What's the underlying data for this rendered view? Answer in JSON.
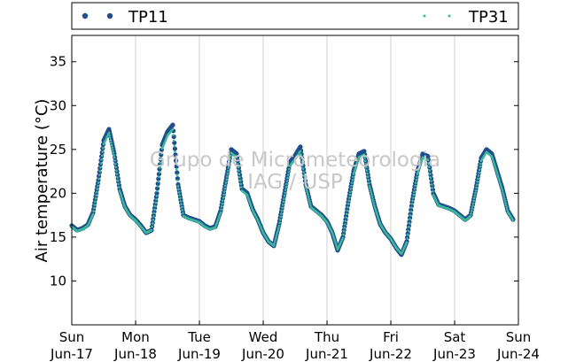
{
  "chart_data": {
    "type": "scatter",
    "title": "",
    "xlabel": "",
    "ylabel": "Air temperature (°C)",
    "ylim": [
      5,
      38
    ],
    "yticks": [
      10,
      15,
      20,
      25,
      30,
      35
    ],
    "xlim": [
      "2012-06-17T00:00",
      "2012-06-24T00:00"
    ],
    "x_ticks": [
      {
        "day": "Sun",
        "date": "Jun-17",
        "x": "2012-06-17T00:00"
      },
      {
        "day": "Mon",
        "date": "Jun-18",
        "x": "2012-06-18T00:00"
      },
      {
        "day": "Tue",
        "date": "Jun-19",
        "x": "2012-06-19T00:00"
      },
      {
        "day": "Wed",
        "date": "Jun-20",
        "x": "2012-06-20T00:00"
      },
      {
        "day": "Thu",
        "date": "Jun-21",
        "x": "2012-06-21T00:00"
      },
      {
        "day": "Fri",
        "date": "Jun-22",
        "x": "2012-06-22T00:00"
      },
      {
        "day": "Sat",
        "date": "Jun-23",
        "x": "2012-06-23T00:00"
      },
      {
        "day": "Sun",
        "date": "Jun-24",
        "x": "2012-06-24T00:00"
      }
    ],
    "grid": "vertical",
    "legend_position": "top",
    "watermark": [
      "Grupo de Micrometeorologia",
      "IAG / USP"
    ],
    "series": [
      {
        "name": "TP11",
        "color": "#1f4e8c",
        "marker": "circle",
        "points": [
          [
            "2012-06-17T00:00",
            16.3
          ],
          [
            "2012-06-17T02:00",
            15.8
          ],
          [
            "2012-06-17T04:00",
            16.0
          ],
          [
            "2012-06-17T06:00",
            16.4
          ],
          [
            "2012-06-17T08:00",
            17.8
          ],
          [
            "2012-06-17T10:00",
            21.5
          ],
          [
            "2012-06-17T12:00",
            26.0
          ],
          [
            "2012-06-17T14:00",
            27.3
          ],
          [
            "2012-06-17T16:00",
            24.5
          ],
          [
            "2012-06-17T18:00",
            20.5
          ],
          [
            "2012-06-17T20:00",
            18.5
          ],
          [
            "2012-06-17T22:00",
            17.5
          ],
          [
            "2012-06-18T00:00",
            17.0
          ],
          [
            "2012-06-18T02:00",
            16.3
          ],
          [
            "2012-06-18T04:00",
            15.5
          ],
          [
            "2012-06-18T06:00",
            15.8
          ],
          [
            "2012-06-18T08:00",
            20.0
          ],
          [
            "2012-06-18T10:00",
            25.5
          ],
          [
            "2012-06-18T12:00",
            27.0
          ],
          [
            "2012-06-18T14:00",
            27.8
          ],
          [
            "2012-06-18T16:00",
            21.0
          ],
          [
            "2012-06-18T18:00",
            17.5
          ],
          [
            "2012-06-18T20:00",
            17.2
          ],
          [
            "2012-06-18T22:00",
            17.0
          ],
          [
            "2012-06-19T00:00",
            16.8
          ],
          [
            "2012-06-19T02:00",
            16.3
          ],
          [
            "2012-06-19T04:00",
            16.0
          ],
          [
            "2012-06-19T06:00",
            16.2
          ],
          [
            "2012-06-19T08:00",
            18.0
          ],
          [
            "2012-06-19T10:00",
            21.5
          ],
          [
            "2012-06-19T12:00",
            25.0
          ],
          [
            "2012-06-19T14:00",
            24.5
          ],
          [
            "2012-06-19T16:00",
            20.5
          ],
          [
            "2012-06-19T18:00",
            20.0
          ],
          [
            "2012-06-19T20:00",
            18.2
          ],
          [
            "2012-06-19T22:00",
            17.0
          ],
          [
            "2012-06-20T00:00",
            15.5
          ],
          [
            "2012-06-20T02:00",
            14.5
          ],
          [
            "2012-06-20T04:00",
            14.0
          ],
          [
            "2012-06-20T06:00",
            16.5
          ],
          [
            "2012-06-20T08:00",
            20.0
          ],
          [
            "2012-06-20T10:00",
            23.5
          ],
          [
            "2012-06-20T12:00",
            24.3
          ],
          [
            "2012-06-20T14:00",
            25.3
          ],
          [
            "2012-06-20T16:00",
            21.0
          ],
          [
            "2012-06-20T18:00",
            18.5
          ],
          [
            "2012-06-20T20:00",
            18.0
          ],
          [
            "2012-06-20T22:00",
            17.5
          ],
          [
            "2012-06-21T00:00",
            16.8
          ],
          [
            "2012-06-21T02:00",
            15.5
          ],
          [
            "2012-06-21T04:00",
            13.5
          ],
          [
            "2012-06-21T06:00",
            15.0
          ],
          [
            "2012-06-21T08:00",
            19.0
          ],
          [
            "2012-06-21T10:00",
            22.5
          ],
          [
            "2012-06-21T12:00",
            24.5
          ],
          [
            "2012-06-21T14:00",
            24.8
          ],
          [
            "2012-06-21T16:00",
            21.0
          ],
          [
            "2012-06-21T18:00",
            18.5
          ],
          [
            "2012-06-21T20:00",
            16.5
          ],
          [
            "2012-06-21T22:00",
            15.5
          ],
          [
            "2012-06-22T00:00",
            14.8
          ],
          [
            "2012-06-22T02:00",
            13.8
          ],
          [
            "2012-06-22T04:00",
            13.0
          ],
          [
            "2012-06-22T06:00",
            14.5
          ],
          [
            "2012-06-22T08:00",
            19.0
          ],
          [
            "2012-06-22T10:00",
            22.5
          ],
          [
            "2012-06-22T12:00",
            24.5
          ],
          [
            "2012-06-22T14:00",
            24.2
          ],
          [
            "2012-06-22T16:00",
            20.0
          ],
          [
            "2012-06-22T18:00",
            18.7
          ],
          [
            "2012-06-22T20:00",
            18.5
          ],
          [
            "2012-06-22T22:00",
            18.3
          ],
          [
            "2012-06-23T00:00",
            18.0
          ],
          [
            "2012-06-23T02:00",
            17.5
          ],
          [
            "2012-06-23T04:00",
            17.0
          ],
          [
            "2012-06-23T06:00",
            17.5
          ],
          [
            "2012-06-23T08:00",
            20.5
          ],
          [
            "2012-06-23T10:00",
            24.0
          ],
          [
            "2012-06-23T12:00",
            25.0
          ],
          [
            "2012-06-23T14:00",
            24.5
          ],
          [
            "2012-06-23T16:00",
            22.5
          ],
          [
            "2012-06-23T18:00",
            20.5
          ],
          [
            "2012-06-23T20:00",
            18.0
          ],
          [
            "2012-06-23T22:00",
            17.0
          ]
        ]
      },
      {
        "name": "TP31",
        "color": "#3cb89a",
        "marker": "point",
        "points": [
          [
            "2012-06-17T00:00",
            16.2
          ],
          [
            "2012-06-17T02:00",
            15.7
          ],
          [
            "2012-06-17T04:00",
            15.9
          ],
          [
            "2012-06-17T06:00",
            16.3
          ],
          [
            "2012-06-17T08:00",
            17.6
          ],
          [
            "2012-06-17T10:00",
            21.2
          ],
          [
            "2012-06-17T12:00",
            25.6
          ],
          [
            "2012-06-17T14:00",
            26.9
          ],
          [
            "2012-06-17T16:00",
            24.1
          ],
          [
            "2012-06-17T18:00",
            20.3
          ],
          [
            "2012-06-17T20:00",
            18.4
          ],
          [
            "2012-06-17T22:00",
            17.4
          ],
          [
            "2012-06-18T00:00",
            16.9
          ],
          [
            "2012-06-18T02:00",
            16.2
          ],
          [
            "2012-06-18T04:00",
            15.5
          ],
          [
            "2012-06-18T06:00",
            15.8
          ],
          [
            "2012-06-18T08:00",
            19.7
          ],
          [
            "2012-06-18T10:00",
            25.1
          ],
          [
            "2012-06-18T12:00",
            26.6
          ],
          [
            "2012-06-18T14:00",
            27.3
          ],
          [
            "2012-06-18T16:00",
            20.8
          ],
          [
            "2012-06-18T18:00",
            17.4
          ],
          [
            "2012-06-18T20:00",
            17.1
          ],
          [
            "2012-06-18T22:00",
            16.9
          ],
          [
            "2012-06-19T00:00",
            16.7
          ],
          [
            "2012-06-19T02:00",
            16.2
          ],
          [
            "2012-06-19T04:00",
            15.9
          ],
          [
            "2012-06-19T06:00",
            16.1
          ],
          [
            "2012-06-19T08:00",
            17.8
          ],
          [
            "2012-06-19T10:00",
            21.2
          ],
          [
            "2012-06-19T12:00",
            24.6
          ],
          [
            "2012-06-19T14:00",
            24.1
          ],
          [
            "2012-06-19T16:00",
            20.3
          ],
          [
            "2012-06-19T18:00",
            19.8
          ],
          [
            "2012-06-19T20:00",
            18.1
          ],
          [
            "2012-06-19T22:00",
            16.9
          ],
          [
            "2012-06-20T00:00",
            15.5
          ],
          [
            "2012-06-20T02:00",
            14.5
          ],
          [
            "2012-06-20T04:00",
            14.0
          ],
          [
            "2012-06-20T06:00",
            16.3
          ],
          [
            "2012-06-20T08:00",
            19.7
          ],
          [
            "2012-06-20T10:00",
            23.1
          ],
          [
            "2012-06-20T12:00",
            23.9
          ],
          [
            "2012-06-20T14:00",
            24.8
          ],
          [
            "2012-06-20T16:00",
            20.8
          ],
          [
            "2012-06-20T18:00",
            18.4
          ],
          [
            "2012-06-20T20:00",
            17.9
          ],
          [
            "2012-06-20T22:00",
            17.4
          ],
          [
            "2012-06-21T00:00",
            16.7
          ],
          [
            "2012-06-21T02:00",
            15.5
          ],
          [
            "2012-06-21T04:00",
            13.6
          ],
          [
            "2012-06-21T06:00",
            14.9
          ],
          [
            "2012-06-21T08:00",
            18.8
          ],
          [
            "2012-06-21T10:00",
            22.2
          ],
          [
            "2012-06-21T12:00",
            24.1
          ],
          [
            "2012-06-21T14:00",
            24.4
          ],
          [
            "2012-06-21T16:00",
            20.8
          ],
          [
            "2012-06-21T18:00",
            18.4
          ],
          [
            "2012-06-21T20:00",
            16.5
          ],
          [
            "2012-06-21T22:00",
            15.5
          ],
          [
            "2012-06-22T00:00",
            14.8
          ],
          [
            "2012-06-22T02:00",
            13.8
          ],
          [
            "2012-06-22T04:00",
            13.1
          ],
          [
            "2012-06-22T06:00",
            14.4
          ],
          [
            "2012-06-22T08:00",
            18.8
          ],
          [
            "2012-06-22T10:00",
            22.2
          ],
          [
            "2012-06-22T12:00",
            24.1
          ],
          [
            "2012-06-22T14:00",
            23.8
          ],
          [
            "2012-06-22T16:00",
            19.8
          ],
          [
            "2012-06-22T18:00",
            18.6
          ],
          [
            "2012-06-22T20:00",
            18.4
          ],
          [
            "2012-06-22T22:00",
            18.2
          ],
          [
            "2012-06-23T00:00",
            17.9
          ],
          [
            "2012-06-23T02:00",
            17.4
          ],
          [
            "2012-06-23T04:00",
            16.9
          ],
          [
            "2012-06-23T06:00",
            17.4
          ],
          [
            "2012-06-23T08:00",
            20.3
          ],
          [
            "2012-06-23T10:00",
            23.7
          ],
          [
            "2012-06-23T12:00",
            24.7
          ],
          [
            "2012-06-23T14:00",
            24.2
          ],
          [
            "2012-06-23T16:00",
            22.3
          ],
          [
            "2012-06-23T18:00",
            20.3
          ],
          [
            "2012-06-23T20:00",
            17.9
          ],
          [
            "2012-06-23T22:00",
            16.9
          ]
        ]
      }
    ]
  }
}
